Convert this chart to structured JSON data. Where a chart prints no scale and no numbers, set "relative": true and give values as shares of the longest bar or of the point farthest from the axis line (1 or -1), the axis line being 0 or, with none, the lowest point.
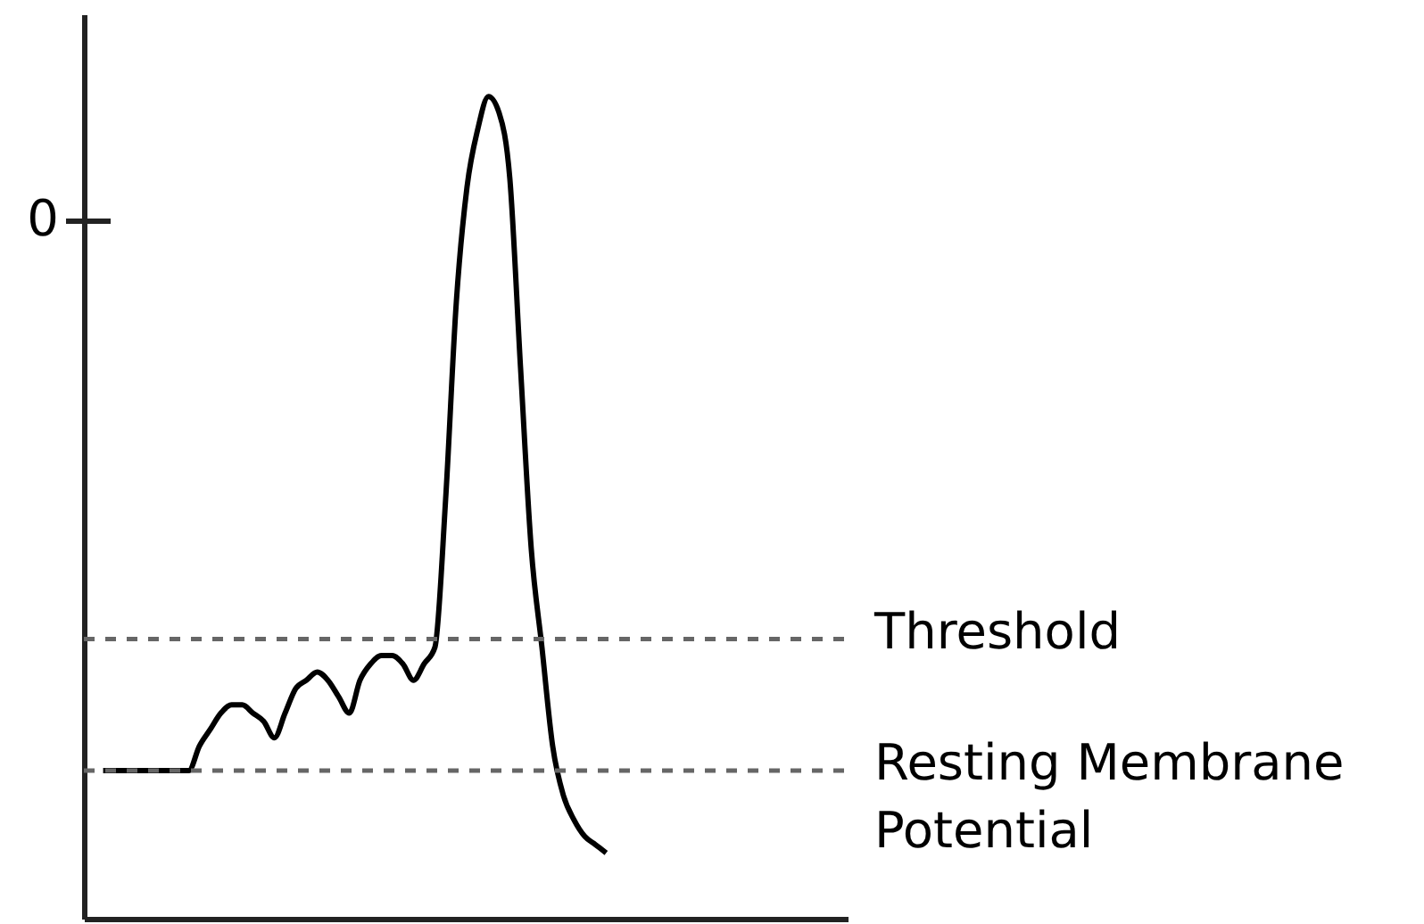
{
  "chart_data": {
    "type": "line",
    "relative": true,
    "line_style": "solid",
    "categories": [
      null,
      null,
      null,
      null,
      null,
      null,
      null,
      null,
      null,
      null,
      null,
      null,
      null,
      null,
      null,
      null,
      null,
      null,
      null,
      null,
      null,
      null,
      null,
      null,
      null,
      null,
      null,
      null,
      null,
      null,
      null,
      null,
      null,
      null,
      null,
      null,
      null,
      null,
      null,
      null,
      null,
      null,
      null,
      null,
      null,
      null,
      null,
      null
    ],
    "series": [
      {
        "color": "#000000",
        "values": [
          0.18,
          0.18,
          0.18,
          0.18,
          0.18,
          0.18,
          0.18,
          0.18,
          0.18,
          0.21,
          0.23,
          0.25,
          0.26,
          0.26,
          0.25,
          0.24,
          0.22,
          0.25,
          0.28,
          0.29,
          0.3,
          0.29,
          0.27,
          0.25,
          0.29,
          0.31,
          0.32,
          0.32,
          0.31,
          0.29,
          0.31,
          0.33,
          0.51,
          0.75,
          0.89,
          0.96,
          1.0,
          0.98,
          0.9,
          0.67,
          0.45,
          0.33,
          0.21,
          0.15,
          0.12,
          0.1,
          0.09,
          0.08
        ]
      }
    ],
    "ref_lines": [
      {
        "axis": "y",
        "value": 0.34,
        "label": "Threshold",
        "color": "#666666",
        "line_style": "dashed"
      },
      {
        "axis": "y",
        "value": 0.18,
        "label": "Resting Membrane Potential",
        "color": "#666666",
        "line_style": "dashed"
      }
    ],
    "annotations": [
      "0"
    ]
  }
}
